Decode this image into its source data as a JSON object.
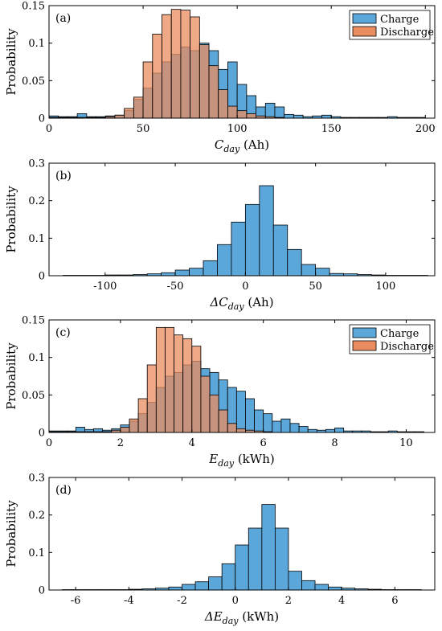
{
  "chart_data": [
    {
      "type": "bar",
      "panel_label": "(a)",
      "xlabel": {
        "symbol": "C",
        "subscript": "day",
        "unit": "(Ah)",
        "italic_prefix": ""
      },
      "ylabel": "Probability",
      "xlim": [
        0,
        205
      ],
      "ylim": [
        0,
        0.15
      ],
      "xticks": [
        0,
        50,
        100,
        150,
        200
      ],
      "xtick_labels": [
        "0",
        "50",
        "100",
        "150",
        "200"
      ],
      "yticks": [
        0,
        0.05,
        0.1,
        0.15
      ],
      "ytick_labels": [
        "0",
        "0.05",
        "0.1",
        "0.15"
      ],
      "grid": false,
      "legend_position": "top-right",
      "bin_width": 5,
      "series": [
        {
          "name": "Charge",
          "color": "#5ba7d9",
          "bin_starts": [
            0,
            5,
            10,
            15,
            20,
            25,
            30,
            35,
            40,
            45,
            50,
            55,
            60,
            65,
            70,
            75,
            80,
            85,
            90,
            95,
            100,
            105,
            110,
            115,
            120,
            125,
            130,
            135,
            140,
            145,
            150,
            155,
            160,
            165,
            170,
            175,
            180,
            185,
            190,
            195
          ],
          "values": [
            0.003,
            0.002,
            0.002,
            0.006,
            0.002,
            0.002,
            0.003,
            0.004,
            0.01,
            0.025,
            0.04,
            0.06,
            0.075,
            0.085,
            0.095,
            0.09,
            0.1,
            0.09,
            0.065,
            0.075,
            0.045,
            0.03,
            0.015,
            0.02,
            0.015,
            0.005,
            0.004,
            0.002,
            0.003,
            0.004,
            0.002,
            0.001,
            0.001,
            0.001,
            0.001,
            0.001,
            0.002,
            0.001,
            0.001,
            0.001
          ]
        },
        {
          "name": "Discharge",
          "color": "#e98c5f",
          "bin_starts": [
            0,
            5,
            10,
            15,
            20,
            25,
            30,
            35,
            40,
            45,
            50,
            55,
            60,
            65,
            70,
            75,
            80,
            85,
            90,
            95,
            100,
            105,
            110,
            115,
            120
          ],
          "values": [
            0.001,
            0.001,
            0.001,
            0.001,
            0.001,
            0.001,
            0.002,
            0.004,
            0.013,
            0.028,
            0.075,
            0.112,
            0.138,
            0.145,
            0.144,
            0.135,
            0.098,
            0.07,
            0.038,
            0.016,
            0.01,
            0.006,
            0.003,
            0.002,
            0.001
          ]
        }
      ]
    },
    {
      "type": "bar",
      "panel_label": "(b)",
      "xlabel": {
        "symbol": "C",
        "subscript": "day",
        "unit": "(Ah)",
        "italic_prefix": "Δ"
      },
      "ylabel": "Probability",
      "xlim": [
        -140,
        135
      ],
      "ylim": [
        0,
        0.3
      ],
      "xticks": [
        -100,
        -50,
        0,
        50,
        100
      ],
      "xtick_labels": [
        "-100",
        "-50",
        "0",
        "50",
        "100"
      ],
      "yticks": [
        0,
        0.1,
        0.2,
        0.3
      ],
      "ytick_labels": [
        "0",
        "0.1",
        "0.2",
        "0.3"
      ],
      "grid": false,
      "bin_width": 10,
      "series": [
        {
          "name": "",
          "color": "#5ba7d9",
          "bin_starts": [
            -130,
            -120,
            -110,
            -100,
            -90,
            -80,
            -70,
            -60,
            -50,
            -40,
            -30,
            -20,
            -10,
            0,
            10,
            20,
            30,
            40,
            50,
            60,
            70,
            80,
            90,
            100,
            110,
            120
          ],
          "values": [
            0.001,
            0.001,
            0.001,
            0.002,
            0.002,
            0.003,
            0.005,
            0.008,
            0.015,
            0.02,
            0.04,
            0.083,
            0.143,
            0.19,
            0.24,
            0.135,
            0.07,
            0.03,
            0.02,
            0.006,
            0.005,
            0.003,
            0.002,
            0.001,
            0.001,
            0.001
          ]
        }
      ]
    },
    {
      "type": "bar",
      "panel_label": "(c)",
      "xlabel": {
        "symbol": "E",
        "subscript": "day",
        "unit": "(kWh)",
        "italic_prefix": ""
      },
      "ylabel": "Probability",
      "xlim": [
        0,
        10.8
      ],
      "ylim": [
        0,
        0.15
      ],
      "xticks": [
        0,
        2,
        4,
        6,
        8,
        10
      ],
      "xtick_labels": [
        "0",
        "2",
        "4",
        "6",
        "8",
        "10"
      ],
      "yticks": [
        0,
        0.05,
        0.1,
        0.15
      ],
      "ytick_labels": [
        "0",
        "0.05",
        "0.1",
        "0.15"
      ],
      "grid": false,
      "legend_position": "top-right",
      "bin_width": 0.25,
      "series": [
        {
          "name": "Charge",
          "color": "#5ba7d9",
          "bin_starts": [
            0,
            0.25,
            0.5,
            0.75,
            1.0,
            1.25,
            1.5,
            1.75,
            2.0,
            2.25,
            2.5,
            2.75,
            3.0,
            3.25,
            3.5,
            3.75,
            4.0,
            4.25,
            4.5,
            4.75,
            5.0,
            5.25,
            5.5,
            5.75,
            6.0,
            6.25,
            6.5,
            6.75,
            7.0,
            7.25,
            7.5,
            7.75,
            8.0,
            8.25,
            8.5,
            8.75,
            9.0,
            9.25,
            9.5,
            9.75,
            10.0,
            10.25
          ],
          "values": [
            0.002,
            0.002,
            0.002,
            0.007,
            0.004,
            0.005,
            0.003,
            0.005,
            0.01,
            0.015,
            0.025,
            0.04,
            0.06,
            0.075,
            0.08,
            0.09,
            0.095,
            0.085,
            0.08,
            0.07,
            0.06,
            0.055,
            0.045,
            0.03,
            0.025,
            0.015,
            0.018,
            0.012,
            0.008,
            0.004,
            0.003,
            0.004,
            0.006,
            0.002,
            0.002,
            0.002,
            0.001,
            0.001,
            0.002,
            0.001,
            0.001,
            0.001
          ]
        },
        {
          "name": "Discharge",
          "color": "#e98c5f",
          "bin_starts": [
            0,
            0.25,
            0.5,
            0.75,
            1.0,
            1.25,
            1.5,
            1.75,
            2.0,
            2.25,
            2.5,
            2.75,
            3.0,
            3.25,
            3.5,
            3.75,
            4.0,
            4.25,
            4.5,
            4.75,
            5.0,
            5.25,
            5.5,
            5.75,
            6.0
          ],
          "values": [
            0.001,
            0.001,
            0.001,
            0.001,
            0.001,
            0.001,
            0.001,
            0.003,
            0.007,
            0.018,
            0.045,
            0.09,
            0.14,
            0.14,
            0.13,
            0.125,
            0.115,
            0.075,
            0.05,
            0.03,
            0.012,
            0.005,
            0.003,
            0.002,
            0.001
          ]
        }
      ]
    },
    {
      "type": "bar",
      "panel_label": "(d)",
      "xlabel": {
        "symbol": "E",
        "subscript": "day",
        "unit": "(kWh)",
        "italic_prefix": "Δ"
      },
      "ylabel": "Probability",
      "xlim": [
        -7,
        7.5
      ],
      "ylim": [
        0,
        0.3
      ],
      "xticks": [
        -6,
        -4,
        -2,
        0,
        2,
        4,
        6
      ],
      "xtick_labels": [
        "-6",
        "-4",
        "-2",
        "0",
        "2",
        "4",
        "6"
      ],
      "yticks": [
        0,
        0.1,
        0.2,
        0.3
      ],
      "ytick_labels": [
        "0",
        "0.1",
        "0.2",
        "0.3"
      ],
      "grid": false,
      "bin_width": 0.5,
      "series": [
        {
          "name": "",
          "color": "#5ba7d9",
          "bin_starts": [
            -6.5,
            -6.0,
            -5.5,
            -5.0,
            -4.5,
            -4.0,
            -3.5,
            -3.0,
            -2.5,
            -2.0,
            -1.5,
            -1.0,
            -0.5,
            0.0,
            0.5,
            1.0,
            1.5,
            2.0,
            2.5,
            3.0,
            3.5,
            4.0,
            4.5,
            5.0,
            5.5,
            6.0,
            6.5
          ],
          "values": [
            0.001,
            0.001,
            0.001,
            0.001,
            0.001,
            0.002,
            0.003,
            0.005,
            0.008,
            0.015,
            0.022,
            0.035,
            0.07,
            0.12,
            0.165,
            0.228,
            0.165,
            0.05,
            0.025,
            0.015,
            0.008,
            0.005,
            0.003,
            0.002,
            0.001,
            0.001,
            0.001
          ]
        }
      ]
    }
  ]
}
